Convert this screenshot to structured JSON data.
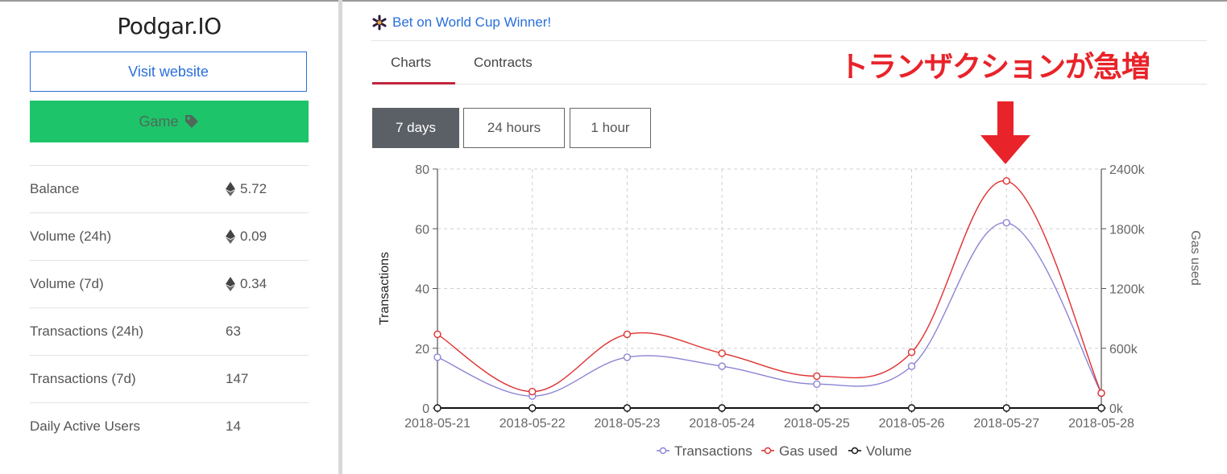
{
  "sidebar": {
    "app_title": "Podgar.IO",
    "visit_label": "Visit website",
    "game_label": "Game",
    "stats": [
      {
        "label": "Balance",
        "value": "5.72",
        "eth": true
      },
      {
        "label": "Volume (24h)",
        "value": "0.09",
        "eth": true
      },
      {
        "label": "Volume (7d)",
        "value": "0.34",
        "eth": true
      },
      {
        "label": "Transactions (24h)",
        "value": "63",
        "eth": false
      },
      {
        "label": "Transactions (7d)",
        "value": "147",
        "eth": false
      },
      {
        "label": "Daily Active Users",
        "value": "14",
        "eth": false
      }
    ]
  },
  "main": {
    "promo_text": "Bet on World Cup Winner!",
    "tabs": [
      {
        "label": "Charts",
        "active": true
      },
      {
        "label": "Contracts",
        "active": false
      }
    ],
    "annotation": "トランザクションが急増",
    "ranges": [
      {
        "label": "7 days",
        "active": true
      },
      {
        "label": "24 hours",
        "active": false
      },
      {
        "label": "1 hour",
        "active": false
      }
    ]
  },
  "colors": {
    "accent": "#c0263c",
    "link": "#2a6fdb",
    "game": "#1ec46a",
    "annotation": "#e8232a",
    "transactions": "#8a84d4",
    "gas": "#e03030",
    "volume": "#111111"
  },
  "chart_data": {
    "type": "line",
    "x": [
      "2018-05-21",
      "2018-05-22",
      "2018-05-23",
      "2018-05-24",
      "2018-05-25",
      "2018-05-26",
      "2018-05-27",
      "2018-05-28"
    ],
    "ylabel": "Transactions",
    "y2label": "Gas used",
    "ylim": [
      0,
      80
    ],
    "y2lim": [
      0,
      2400000
    ],
    "yticks": [
      "0",
      "20",
      "40",
      "60",
      "80"
    ],
    "y2ticks": [
      "0k",
      "600k",
      "1200k",
      "1800k",
      "2400k"
    ],
    "grid": true,
    "legend_position": "bottom",
    "series": [
      {
        "name": "Transactions",
        "axis": "left",
        "color": "#8a84d4",
        "values": [
          17,
          4,
          17,
          14,
          8,
          14,
          62,
          5
        ]
      },
      {
        "name": "Gas used",
        "axis": "right",
        "color": "#e03030",
        "values": [
          740000,
          165000,
          740000,
          550000,
          320000,
          560000,
          2280000,
          150000
        ]
      },
      {
        "name": "Volume",
        "axis": "left",
        "color": "#111111",
        "values": [
          0,
          0,
          0,
          0,
          0,
          0,
          0,
          0
        ]
      }
    ]
  }
}
